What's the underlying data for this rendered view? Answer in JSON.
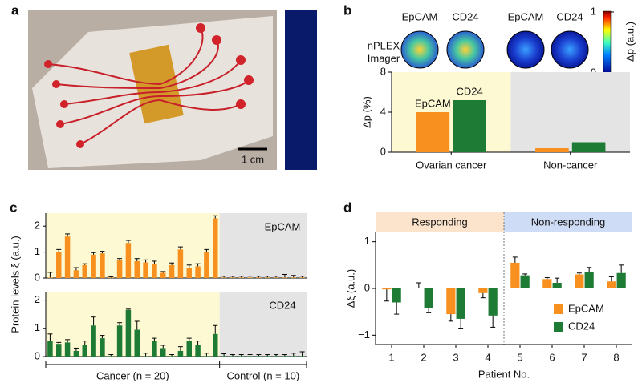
{
  "photo": {
    "panel_label": "a",
    "scale_bar": "1 cm"
  },
  "chart_data": [
    {
      "type": "bar",
      "panel_label": "b",
      "heatmap_labels": [
        "EpCAM",
        "CD24",
        "EpCAM",
        "CD24"
      ],
      "imager_label": [
        "nPLEX",
        "Imager"
      ],
      "colorbar": {
        "label": "Δp (a.u.)",
        "ticks": [
          0,
          1
        ]
      },
      "ylabel": "Δp (%)",
      "categories": [
        "Ovarian cancer",
        "Non-cancer"
      ],
      "series": [
        {
          "name": "EpCAM",
          "color": "#f7901e",
          "values": [
            4.0,
            0.4
          ]
        },
        {
          "name": "CD24",
          "color": "#1e7b35",
          "values": [
            5.2,
            1.0
          ]
        }
      ],
      "ylim": [
        0,
        8
      ],
      "yticks": [
        0,
        4,
        8
      ]
    },
    {
      "type": "bar",
      "panel_label": "c",
      "ylabel": "Protein levels ξ (a.u.)",
      "categories": [
        null,
        null,
        null,
        null,
        null,
        null,
        null,
        null,
        null,
        null,
        null,
        null,
        null,
        null,
        null,
        null,
        null,
        null,
        null,
        null,
        null,
        null,
        null,
        null,
        null,
        null,
        null,
        null,
        null,
        null
      ],
      "series": [
        {
          "name": "EpCAM",
          "color": "#f7901e",
          "values": [
            0.02,
            1.0,
            1.6,
            0.3,
            0.5,
            0.9,
            0.95,
            0.02,
            0.7,
            1.35,
            0.65,
            0.6,
            0.55,
            0.2,
            0.5,
            1.1,
            0.4,
            0.45,
            1.0,
            2.3,
            0.02,
            0.02,
            0.02,
            0.02,
            0.02,
            0.02,
            0.02,
            0.02,
            0.02,
            0.02
          ],
          "errors": [
            0.2,
            0.1,
            0.1,
            0.1,
            0.05,
            0.08,
            0.08,
            0.03,
            0.05,
            0.1,
            0.1,
            0.1,
            0.1,
            0.05,
            0.08,
            0.1,
            0.1,
            0.1,
            0.1,
            0.1,
            0.05,
            0.05,
            0.05,
            0.05,
            0.05,
            0.05,
            0.05,
            0.12,
            0.08,
            0.05
          ]
        }
      ],
      "ylim": [
        0,
        2.5
      ],
      "yticks": [
        0,
        1,
        2
      ]
    },
    {
      "type": "bar",
      "categories": [
        null,
        null,
        null,
        null,
        null,
        null,
        null,
        null,
        null,
        null,
        null,
        null,
        null,
        null,
        null,
        null,
        null,
        null,
        null,
        null,
        null,
        null,
        null,
        null,
        null,
        null,
        null,
        null,
        null,
        null
      ],
      "series": [
        {
          "name": "CD24",
          "color": "#1e7b35",
          "values": [
            0.55,
            0.45,
            0.5,
            0.2,
            0.4,
            1.1,
            0.65,
            0.02,
            1.1,
            1.65,
            0.95,
            0.02,
            0.55,
            0.3,
            0.02,
            0.2,
            0.55,
            0.4,
            0.02,
            0.8,
            0.02,
            0.02,
            0.02,
            0.02,
            0.02,
            0.02,
            0.02,
            0.02,
            0.02,
            0.02
          ],
          "errors": [
            0.25,
            0.05,
            0.1,
            0.1,
            0.15,
            0.3,
            0.1,
            0.05,
            0.1,
            0.03,
            0.3,
            0.1,
            0.1,
            0.1,
            0.05,
            0.15,
            0.1,
            0.15,
            0.1,
            0.3,
            0.08,
            0.05,
            0.05,
            0.05,
            0.05,
            0.05,
            0.05,
            0.05,
            0.1,
            0.15
          ]
        }
      ],
      "group_labels": [
        "Cancer (n = 20)",
        "Control (n = 10)"
      ],
      "ylim": [
        0,
        2.3
      ],
      "yticks": [
        0,
        1,
        2
      ]
    },
    {
      "type": "bar",
      "panel_label": "d",
      "ylabel": "Δξ (a.u.)",
      "xlabel": "Patient No.",
      "header": [
        "Responding",
        "Non-responding"
      ],
      "categories": [
        "1",
        "2",
        "3",
        "4",
        "5",
        "6",
        "7",
        "8"
      ],
      "series": [
        {
          "name": "EpCAM",
          "color": "#f7901e",
          "values": [
            -0.02,
            0.0,
            -0.55,
            -0.1,
            0.55,
            0.2,
            0.3,
            0.15
          ],
          "errors": [
            0.25,
            0.12,
            0.15,
            0.1,
            0.12,
            0.03,
            0.03,
            0.1
          ]
        },
        {
          "name": "CD24",
          "color": "#1e7b35",
          "values": [
            -0.3,
            -0.42,
            -0.65,
            -0.58,
            0.28,
            0.12,
            0.35,
            0.33
          ],
          "errors": [
            0.25,
            0.1,
            0.2,
            0.25,
            0.03,
            0.1,
            0.1,
            0.17
          ]
        }
      ],
      "ylim": [
        -1.2,
        1.2
      ],
      "yticks": [
        {
          "value": -1,
          "label": "−1"
        },
        0,
        1
      ],
      "legend": "lower right"
    }
  ]
}
